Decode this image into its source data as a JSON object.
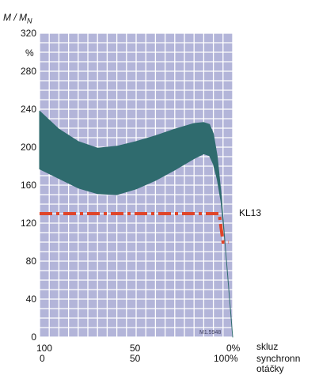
{
  "chart_data": {
    "type": "area",
    "ylabel": "M / M",
    "ylabel_sub": "N",
    "y_unit": "%",
    "ylim": [
      0,
      320
    ],
    "y_ticks": [
      0,
      40,
      80,
      120,
      160,
      200,
      240,
      280,
      320
    ],
    "x_axis_top": {
      "label": "skluz",
      "ticks": [
        "100",
        "50",
        "0%"
      ]
    },
    "x_axis_bottom": {
      "label_lines": [
        "synchronn",
        "otáčky"
      ],
      "ticks": [
        "0",
        "50",
        "100%"
      ]
    },
    "grid": true,
    "background_color": "#b3b5d9",
    "series": [
      {
        "kind": "band",
        "color": "#2f6b6e",
        "note": "x = speed in % of synchronous speed",
        "x": [
          0,
          10,
          20,
          30,
          40,
          50,
          60,
          70,
          80,
          85,
          88,
          90,
          92,
          94,
          96,
          98,
          100
        ],
        "upper": [
          238,
          219,
          206,
          199,
          201,
          206,
          212,
          219,
          225,
          226,
          224,
          214,
          190,
          150,
          100,
          50,
          0
        ],
        "lower": [
          177,
          167,
          157,
          151,
          150,
          156,
          165,
          176,
          188,
          193,
          191,
          182,
          166,
          142,
          100,
          50,
          0
        ]
      },
      {
        "name": "KL13",
        "kind": "line",
        "style": "dash-dot",
        "color": "#e0452a",
        "x": [
          0,
          93,
          95,
          96,
          98
        ],
        "y": [
          130,
          130,
          100,
          100,
          100
        ]
      }
    ],
    "annotation": "M1.5948"
  }
}
